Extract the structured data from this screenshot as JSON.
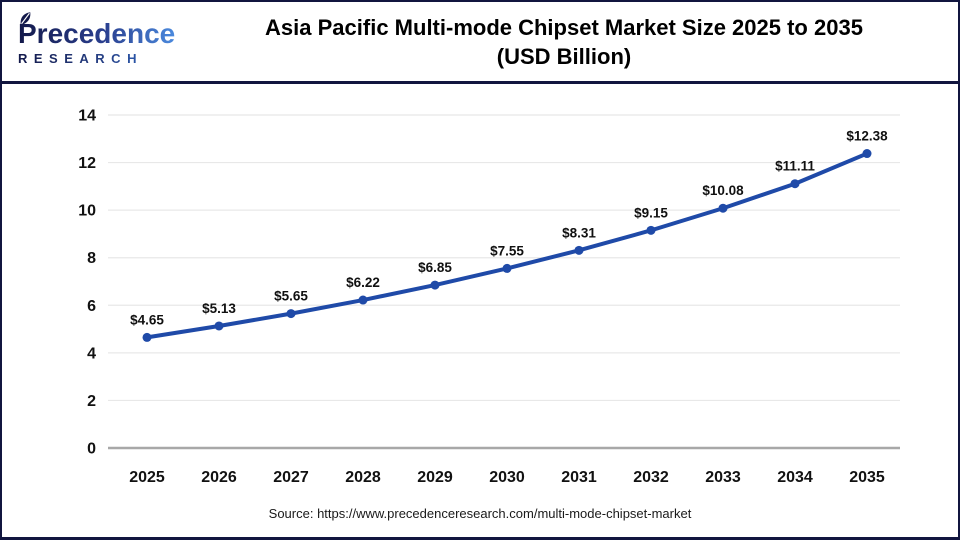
{
  "header": {
    "logo": {
      "line1": "Precedence",
      "line2": "RESEARCH"
    },
    "title_line1": "Asia Pacific Multi-mode Chipset Market Size 2025 to 2035",
    "title_line2": "(USD Billion)"
  },
  "chart_data": {
    "type": "line",
    "title": "Asia Pacific Multi-mode Chipset Market Size 2025 to 2035 (USD Billion)",
    "categories": [
      "2025",
      "2026",
      "2027",
      "2028",
      "2029",
      "2030",
      "2031",
      "2032",
      "2033",
      "2034",
      "2035"
    ],
    "values": [
      4.65,
      5.13,
      5.65,
      6.22,
      6.85,
      7.55,
      8.31,
      9.15,
      10.08,
      11.11,
      12.38
    ],
    "point_labels": [
      "$4.65",
      "$5.13",
      "$5.65",
      "$6.22",
      "$6.85",
      "$7.55",
      "$8.31",
      "$9.15",
      "$10.08",
      "$11.11",
      "$12.38"
    ],
    "xlabel": "",
    "ylabel": "",
    "ylim": [
      0,
      14
    ],
    "yticks": [
      0,
      2,
      4,
      6,
      8,
      10,
      12,
      14
    ],
    "grid": true,
    "legend": "none",
    "colors": {
      "line": "#1f4aa8",
      "marker": "#1f4aa8",
      "grid": "#e8e8e8",
      "zero_axis": "#a8a8a8",
      "tick_text": "#111111",
      "value_label_text": "#111111",
      "frame_border": "#11153f"
    }
  },
  "footer": {
    "source": "Source: https://www.precedenceresearch.com/multi-mode-chipset-market"
  }
}
